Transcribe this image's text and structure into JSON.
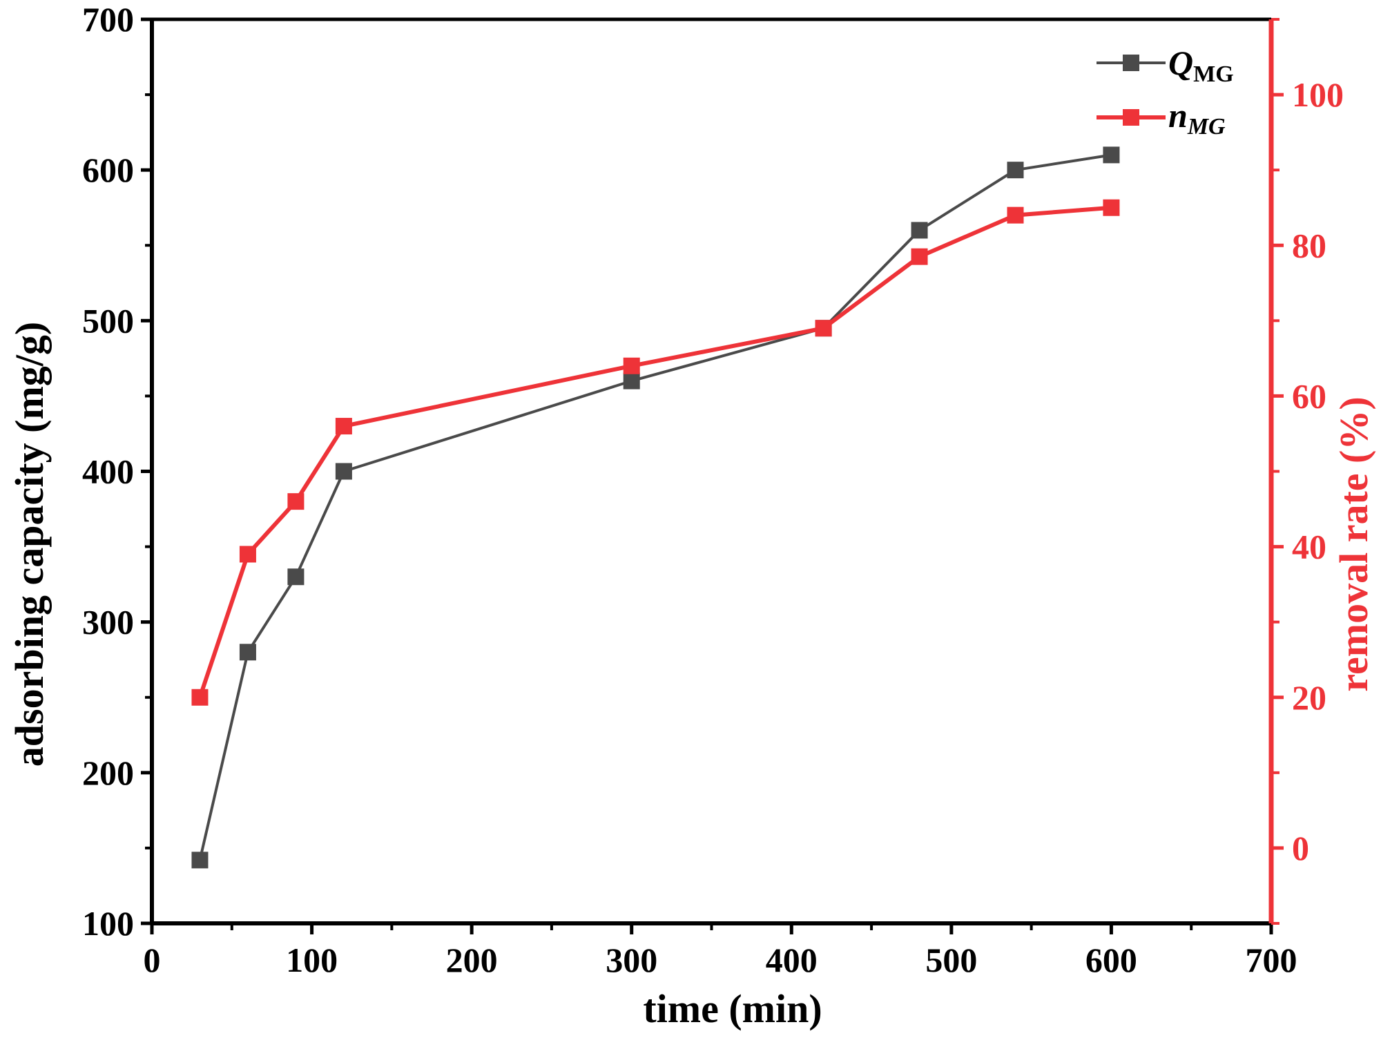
{
  "chart_data": {
    "type": "line",
    "x": [
      30,
      60,
      90,
      120,
      300,
      420,
      480,
      540,
      600
    ],
    "series": [
      {
        "name": "Q_MG",
        "axis": "left",
        "values": [
          142,
          280,
          330,
          400,
          460,
          495,
          560,
          600,
          610
        ],
        "color": "#4a4a4a"
      },
      {
        "name": "n_MG",
        "axis": "right",
        "values": [
          20,
          39,
          46,
          56,
          64,
          69,
          78.5,
          84,
          85
        ]
      }
    ],
    "colors": {
      "left_axis": "#000000",
      "right_axis": "#ee3338",
      "q_series": "#4a4a4a",
      "n_series": "#ee3338"
    },
    "xlabel": "time (min)",
    "ylabel": "adsorbing capacity (mg/g)",
    "y2label": "removal rate (%)",
    "xlim": [
      0,
      700
    ],
    "ylim": [
      100,
      700
    ],
    "y2lim": [
      -10,
      110
    ],
    "xticks": [
      0,
      100,
      200,
      300,
      400,
      500,
      600,
      700
    ],
    "yticks": [
      100,
      200,
      300,
      400,
      500,
      600,
      700
    ],
    "y2ticks": [
      0,
      20,
      40,
      60,
      80,
      100
    ],
    "grid": false,
    "legend": {
      "placement": "top-right",
      "entries": [
        {
          "main": "Q",
          "sub": "MG",
          "italic_sub": false
        },
        {
          "main": "n",
          "sub": "MG",
          "italic_sub": true
        }
      ]
    }
  }
}
